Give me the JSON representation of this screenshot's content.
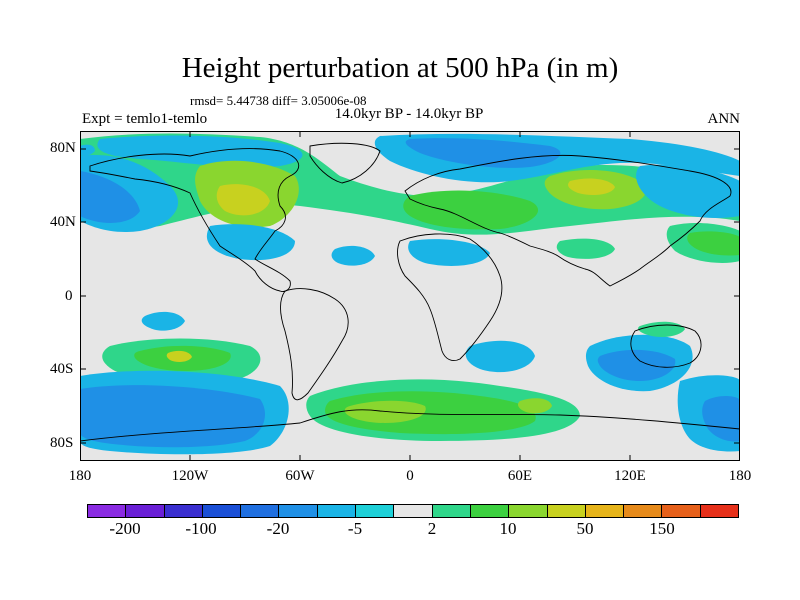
{
  "title": "Height perturbation at 500 hPa (in m)",
  "stats": "rmsd= 5.44738 diff= 3.05006e-08",
  "subtitle": "14.0kyr BP - 14.0kyr BP",
  "left_label": "Expt = temlo1-temlo",
  "right_label": "ANN",
  "y_ticks": [
    "80N",
    "40N",
    "0",
    "40S",
    "80S"
  ],
  "x_ticks": [
    "180",
    "120W",
    "60W",
    "0",
    "60E",
    "120E",
    "180"
  ],
  "colorbar": {
    "colors": [
      "#8a2be2",
      "#6a1fd6",
      "#3a2fd0",
      "#1a4fd6",
      "#1f6fe0",
      "#1f90e6",
      "#1ab4e6",
      "#1ed0d8",
      "#e6e6e6",
      "#2fd68a",
      "#3cd040",
      "#8ad62f",
      "#c8d11f",
      "#e6b41a",
      "#e68a1a",
      "#e6601a",
      "#e6301a"
    ],
    "labels": [
      "-200",
      "-100",
      "-20",
      "-5",
      "2",
      "10",
      "50",
      "150"
    ]
  },
  "chart_data": {
    "type": "heatmap",
    "title": "Height perturbation at 500 hPa (in m)",
    "subtitle": "14.0kyr BP - 14.0kyr BP",
    "projection": "cylindrical equidistant",
    "xlim": [
      -180,
      180
    ],
    "ylim": [
      -90,
      90
    ],
    "x_ticks": [
      "180",
      "120W",
      "60W",
      "0",
      "60E",
      "120E",
      "180"
    ],
    "y_ticks": [
      "80N",
      "40N",
      "0",
      "40S",
      "80S"
    ],
    "levels": [
      -300,
      -200,
      -150,
      -100,
      -50,
      -20,
      -10,
      -5,
      -2,
      2,
      5,
      10,
      20,
      50,
      100,
      150,
      200,
      300
    ],
    "anomaly_regions": [
      {
        "lon": [
          -170,
          -80
        ],
        "lat": [
          60,
          85
        ],
        "level": "-5 to -2"
      },
      {
        "lon": [
          -170,
          -120
        ],
        "lat": [
          30,
          55
        ],
        "level": "-10 to -5"
      },
      {
        "lon": [
          -110,
          -60
        ],
        "lat": [
          45,
          80
        ],
        "level": "5 to 10"
      },
      {
        "lon": [
          -20,
          90
        ],
        "lat": [
          30,
          55
        ],
        "level": "5 to 10"
      },
      {
        "lon": [
          0,
          100
        ],
        "lat": [
          60,
          85
        ],
        "level": "-10 to -5"
      },
      {
        "lon": [
          80,
          130
        ],
        "lat": [
          50,
          70
        ],
        "level": "10 to 20"
      },
      {
        "lon": [
          120,
          180
        ],
        "lat": [
          20,
          45
        ],
        "level": "5 to 10"
      },
      {
        "lon": [
          -170,
          -90
        ],
        "lat": [
          -85,
          -60
        ],
        "level": "-20 to -10"
      },
      {
        "lon": [
          -160,
          -120
        ],
        "lat": [
          -45,
          -35
        ],
        "level": "10 to 20"
      },
      {
        "lon": [
          -40,
          90
        ],
        "lat": [
          -75,
          -55
        ],
        "level": "5 to 10"
      },
      {
        "lon": [
          90,
          140
        ],
        "lat": [
          -50,
          -40
        ],
        "level": "-10 to -5"
      },
      {
        "lon": [
          30,
          60
        ],
        "lat": [
          -45,
          -35
        ],
        "level": "-5 to -2"
      },
      {
        "lon": [
          150,
          180
        ],
        "lat": [
          -85,
          -60
        ],
        "level": "-10 to -5"
      }
    ],
    "colorbar_labels": [
      "-200",
      "-100",
      "-20",
      "-5",
      "2",
      "10",
      "50",
      "150"
    ]
  }
}
